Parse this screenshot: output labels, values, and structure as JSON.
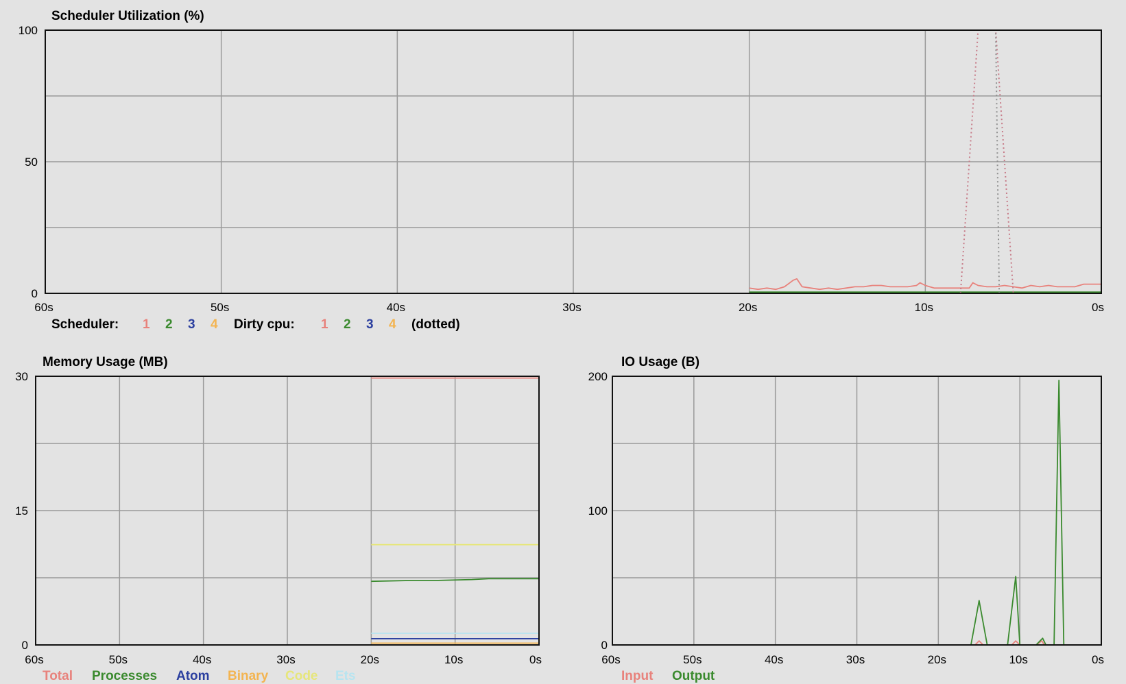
{
  "x_tick_labels": [
    "60s",
    "50s",
    "40s",
    "30s",
    "20s",
    "10s",
    "0s"
  ],
  "colors": {
    "red": "#e8827c",
    "green": "#3a8a2e",
    "blue": "#2b3f9f",
    "orange": "#f3b451",
    "yellow": "#e6e67a",
    "cyan": "#b7e4f0",
    "grid": "#9a9a9a",
    "frame": "#111111"
  },
  "scheduler": {
    "title": "Scheduler Utilization (%)",
    "legend": {
      "scheduler_label": "Scheduler:",
      "scheduler_items": [
        "1",
        "2",
        "3",
        "4"
      ],
      "dirty_label": "Dirty cpu:",
      "dirty_items": [
        "1",
        "2",
        "3",
        "4"
      ],
      "dotted_note": "(dotted)"
    }
  },
  "memory": {
    "title": "Memory Usage (MB)",
    "legend": [
      "Total",
      "Processes",
      "Atom",
      "Binary",
      "Code",
      "Ets"
    ]
  },
  "io": {
    "title": "IO Usage (B)",
    "legend": [
      "Input",
      "Output"
    ]
  },
  "chart_data": [
    {
      "type": "line",
      "title": "Scheduler Utilization (%)",
      "xlim": [
        60,
        0
      ],
      "ylim": [
        0,
        100
      ],
      "y_ticks": [
        0,
        50,
        100
      ],
      "x_ticks": [
        60,
        50,
        40,
        30,
        20,
        10,
        0
      ],
      "grid": true,
      "series": [
        {
          "name": "1",
          "color": "#e8827c",
          "style": "solid",
          "x": [
            20,
            19.5,
            19,
            18.5,
            18,
            17.5,
            17.3,
            17,
            16.5,
            16,
            15.5,
            15,
            14.5,
            14,
            13.5,
            13,
            12.5,
            12,
            11.5,
            11,
            10.5,
            10.3,
            10,
            9.5,
            9,
            8.5,
            8,
            7.5,
            7.3,
            7,
            6.5,
            6,
            5.5,
            5,
            4.5,
            4,
            3.5,
            3,
            2.5,
            2,
            1.5,
            1,
            0.5,
            0
          ],
          "y": [
            2,
            1.5,
            2,
            1.5,
            2.5,
            5,
            5.5,
            2.5,
            2,
            1.5,
            2,
            1.5,
            2,
            2.5,
            2.5,
            3,
            3,
            2.5,
            2.5,
            2.5,
            3,
            4,
            3,
            2,
            2,
            2,
            2,
            2,
            4,
            3,
            2.5,
            2.5,
            3,
            2.5,
            2,
            3,
            2.5,
            3,
            2.5,
            2.5,
            2.5,
            3.5,
            3.5,
            3.5
          ]
        },
        {
          "name": "2",
          "color": "#3a8a2e",
          "style": "solid",
          "x": [
            20,
            15,
            10,
            5,
            0
          ],
          "y": [
            0.5,
            0.5,
            0.5,
            0.5,
            0.5
          ]
        },
        {
          "name": "3",
          "color": "#2b3f9f",
          "style": "solid",
          "x": [
            20,
            15,
            10,
            5,
            0
          ],
          "y": [
            0,
            0,
            0,
            0,
            0
          ]
        },
        {
          "name": "4",
          "color": "#f3b451",
          "style": "solid",
          "x": [
            20,
            15,
            10,
            5,
            0
          ],
          "y": [
            0,
            0,
            0,
            0,
            0
          ]
        },
        {
          "name": "Dirty cpu 1",
          "color": "#c77b88",
          "style": "dotted",
          "x": [
            8,
            7,
            6.5,
            6,
            5
          ],
          "y": [
            0,
            100,
            100,
            100,
            0
          ]
        },
        {
          "name": "Dirty cpu 2",
          "color": "#8f8f8f",
          "style": "dotted",
          "x": [
            7,
            6,
            5.8,
            5
          ],
          "y": [
            100,
            100,
            0,
            0
          ]
        }
      ],
      "legend": "bottom"
    },
    {
      "type": "line",
      "title": "Memory Usage (MB)",
      "xlim": [
        60,
        0
      ],
      "ylim": [
        0,
        30
      ],
      "y_ticks": [
        0,
        15,
        30
      ],
      "x_ticks": [
        60,
        50,
        40,
        30,
        20,
        10,
        0
      ],
      "grid": true,
      "series": [
        {
          "name": "Total",
          "color": "#e8827c",
          "x": [
            20,
            10,
            0
          ],
          "y": [
            29.8,
            29.8,
            29.8
          ]
        },
        {
          "name": "Processes",
          "color": "#3a8a2e",
          "x": [
            20,
            15,
            12,
            8,
            6,
            0
          ],
          "y": [
            7.1,
            7.2,
            7.2,
            7.3,
            7.4,
            7.4
          ]
        },
        {
          "name": "Atom",
          "color": "#2b3f9f",
          "x": [
            20,
            10,
            0
          ],
          "y": [
            0.7,
            0.7,
            0.7
          ]
        },
        {
          "name": "Binary",
          "color": "#f3b451",
          "x": [
            20,
            10,
            0
          ],
          "y": [
            0.2,
            0.2,
            0.2
          ]
        },
        {
          "name": "Code",
          "color": "#e6e67a",
          "x": [
            20,
            10,
            0
          ],
          "y": [
            11.2,
            11.2,
            11.2
          ]
        },
        {
          "name": "Ets",
          "color": "#b7e4f0",
          "x": [
            20,
            10,
            0
          ],
          "y": [
            1.3,
            1.3,
            1.3
          ]
        }
      ],
      "legend": "bottom"
    },
    {
      "type": "line",
      "title": "IO Usage (B)",
      "xlim": [
        60,
        0
      ],
      "ylim": [
        0,
        200
      ],
      "y_ticks": [
        0,
        100,
        200
      ],
      "x_ticks": [
        60,
        50,
        40,
        30,
        20,
        10,
        0
      ],
      "grid": true,
      "series": [
        {
          "name": "Input",
          "color": "#e8827c",
          "x": [
            20,
            15.5,
            15,
            14.5,
            11,
            10.5,
            10,
            8,
            7.3,
            7,
            0
          ],
          "y": [
            0,
            0,
            3,
            0,
            0,
            3,
            0,
            0,
            3,
            0,
            0
          ]
        },
        {
          "name": "Output",
          "color": "#3a8a2e",
          "x": [
            20,
            16,
            15,
            14,
            11.5,
            10.5,
            10,
            8,
            7.2,
            6.8,
            5.8,
            5.2,
            4.6,
            0
          ],
          "y": [
            0,
            0,
            33,
            0,
            0,
            51,
            0,
            0,
            5,
            0,
            0,
            197,
            0,
            0
          ]
        }
      ],
      "legend": "bottom"
    }
  ]
}
